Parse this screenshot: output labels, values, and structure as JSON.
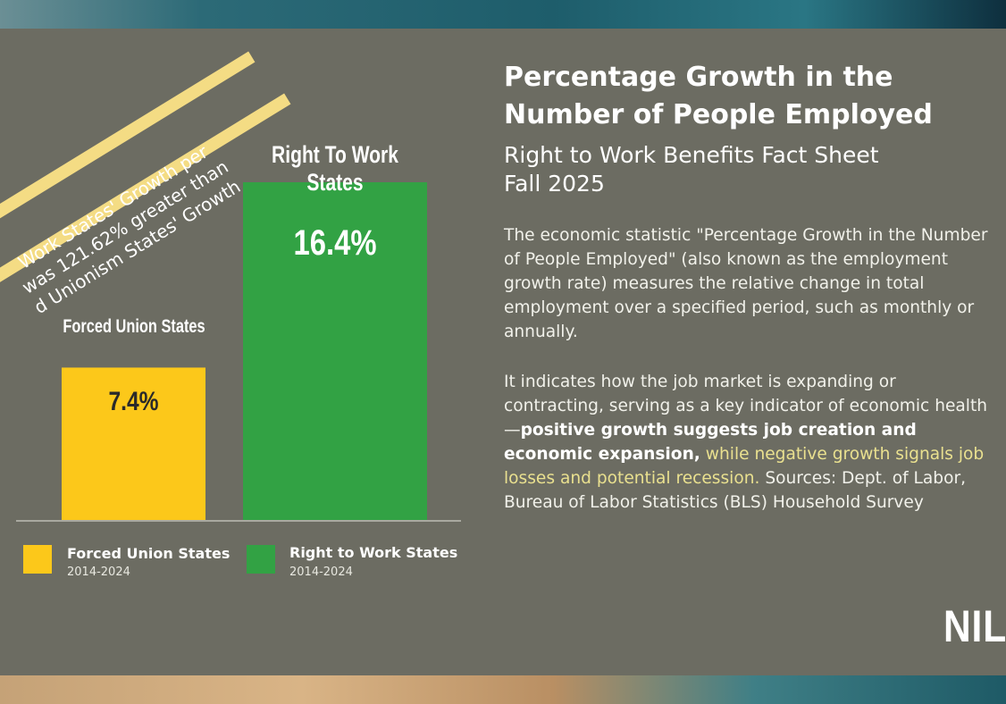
{
  "banner": {
    "lines": [
      "Work States' Growth per",
      "was 121.62% greater than",
      "d Unionism States' Growth"
    ]
  },
  "chart_data": {
    "type": "bar",
    "categories": [
      "Forced Union States",
      "Right To Work States"
    ],
    "values": [
      7.4,
      16.4
    ],
    "value_labels": [
      "7.4%",
      "16.4%"
    ],
    "colors": [
      "#fcc81a",
      "#32a244"
    ],
    "ylim": [
      0,
      18
    ],
    "grid": false,
    "legend": [
      {
        "name": "Forced Union States",
        "sub": "2014-2024",
        "color": "#fcc81a"
      },
      {
        "name": "Right to Work States",
        "sub": "2014-2024",
        "color": "#32a244"
      }
    ],
    "legend_position": "bottom"
  },
  "text": {
    "title": "Percentage Growth in the Number of People Employed",
    "subtitle_line1": "Right to Work Benefits Fact Sheet",
    "subtitle_line2": "Fall 2025",
    "para1": "The economic statistic \"Percentage Growth in the Number of People Employed\" (also known as the employment growth rate) measures the relative change in total employment over a specified period, such as monthly or annually.",
    "para2_start": "It indicates how the job market is expanding or contracting, serving as a key indicator of economic health—",
    "para2_bold": "positive growth suggests job creation and economic expansion,",
    "para2_highlight": " while negative growth signals job losses and potential recession.",
    "para2_end": " Sources: Dept. of Labor, Bureau of Labor Statistics (BLS) Household Survey"
  },
  "logo": "NIL"
}
